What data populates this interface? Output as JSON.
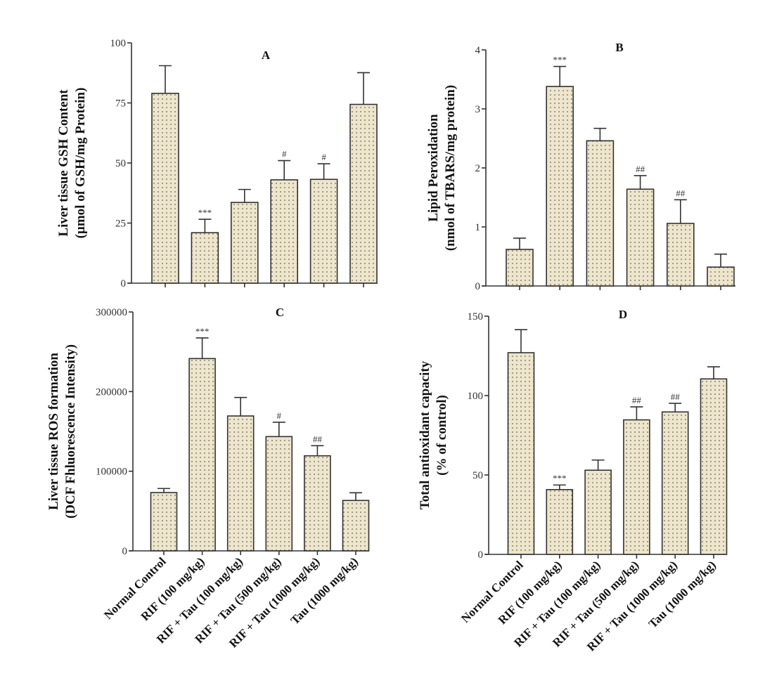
{
  "chart_data": [
    {
      "type": "bar",
      "panel": "A",
      "title": "A",
      "ylabel": [
        "Liver tissue GSH Content",
        "(µmol of GSH/mg Protein)"
      ],
      "xlabel": "",
      "ylim": [
        0,
        100
      ],
      "yticks": [
        0,
        25,
        50,
        75,
        100
      ],
      "ytick_labels": [
        "0",
        "25",
        "50",
        "75",
        "100"
      ],
      "categories": [
        "Normal Control",
        "RIF (100 mg/kg)",
        "RIF + Tau (100 mg/kg)",
        "RIF + Tau (500 mg/kg)",
        "RIF + Tau (1000 mg/kg)",
        "Tau (1000 mg/kg)"
      ],
      "values": [
        79,
        21,
        33.6,
        43,
        43.2,
        74.4
      ],
      "error_upper": [
        90.5,
        26.6,
        39,
        51,
        49.7,
        87.6
      ],
      "significance": [
        "",
        "***",
        "",
        "#",
        "#",
        ""
      ],
      "grid": false
    },
    {
      "type": "bar",
      "panel": "B",
      "title": "B",
      "ylabel": [
        "Lipid Peroxidation",
        "(nmol of TBARS/mg protein)"
      ],
      "xlabel": "",
      "ylim": [
        0,
        4
      ],
      "yticks": [
        0,
        1,
        2,
        3,
        4
      ],
      "ytick_labels": [
        "0",
        "1",
        "2",
        "3",
        "4"
      ],
      "categories": [
        "Normal Control",
        "RIF (100 mg/kg)",
        "RIF + Tau (100 mg/kg)",
        "RIF + Tau (500 mg/kg)",
        "RIF + Tau (1000 mg/kg)",
        "Tau (1000 mg/kg)"
      ],
      "values": [
        0.62,
        3.38,
        2.46,
        1.64,
        1.06,
        0.32
      ],
      "error_upper": [
        0.81,
        3.72,
        2.67,
        1.87,
        1.46,
        0.54
      ],
      "significance": [
        "",
        "***",
        "",
        "##",
        "##",
        ""
      ],
      "grid": false
    },
    {
      "type": "bar",
      "panel": "C",
      "title": "C",
      "ylabel": [
        "Liver tissue ROS formation",
        "(DCF Fhluorescence Intensity)"
      ],
      "xlabel": "",
      "ylim": [
        0,
        300000
      ],
      "yticks": [
        0,
        100000,
        200000,
        300000
      ],
      "ytick_labels": [
        "0",
        "100000",
        "200000",
        "300000"
      ],
      "categories": [
        "Normal Control",
        "RIF (100 mg/kg)",
        "RIF + Tau (100 mg/kg)",
        "RIF + Tau (500 mg/kg)",
        "RIF + Tau (1000 mg/kg)",
        "Tau (1000 mg/kg)"
      ],
      "values": [
        73200,
        241500,
        169400,
        143500,
        119400,
        63300
      ],
      "error_upper": [
        78300,
        267400,
        192600,
        161500,
        132100,
        73000
      ],
      "significance": [
        "",
        "***",
        "",
        "#",
        "##",
        ""
      ],
      "grid": false
    },
    {
      "type": "bar",
      "panel": "D",
      "title": "D",
      "ylabel": [
        "Total antioxidant capacity",
        "(% of control)"
      ],
      "xlabel": "",
      "ylim": [
        0,
        150
      ],
      "yticks": [
        0,
        50,
        100,
        150
      ],
      "ytick_labels": [
        "0",
        "50",
        "100",
        "150"
      ],
      "categories": [
        "Normal Control",
        "RIF (100 mg/kg)",
        "RIF + Tau (100 mg/kg)",
        "RIF + Tau (500 mg/kg)",
        "RIF + Tau (1000 mg/kg)",
        "Tau (1000 mg/kg)"
      ],
      "values": [
        127,
        40.8,
        53,
        84.7,
        89.7,
        110.5
      ],
      "error_upper": [
        141.5,
        43.7,
        59.4,
        92.9,
        95.1,
        118.1
      ],
      "significance": [
        "",
        "***",
        "",
        "##",
        "##",
        ""
      ],
      "grid": false
    }
  ],
  "colors": {
    "bar_fill": "#ede5cc",
    "bar_dots": "#6b6552",
    "axis": "#333333",
    "text": "#111111"
  }
}
